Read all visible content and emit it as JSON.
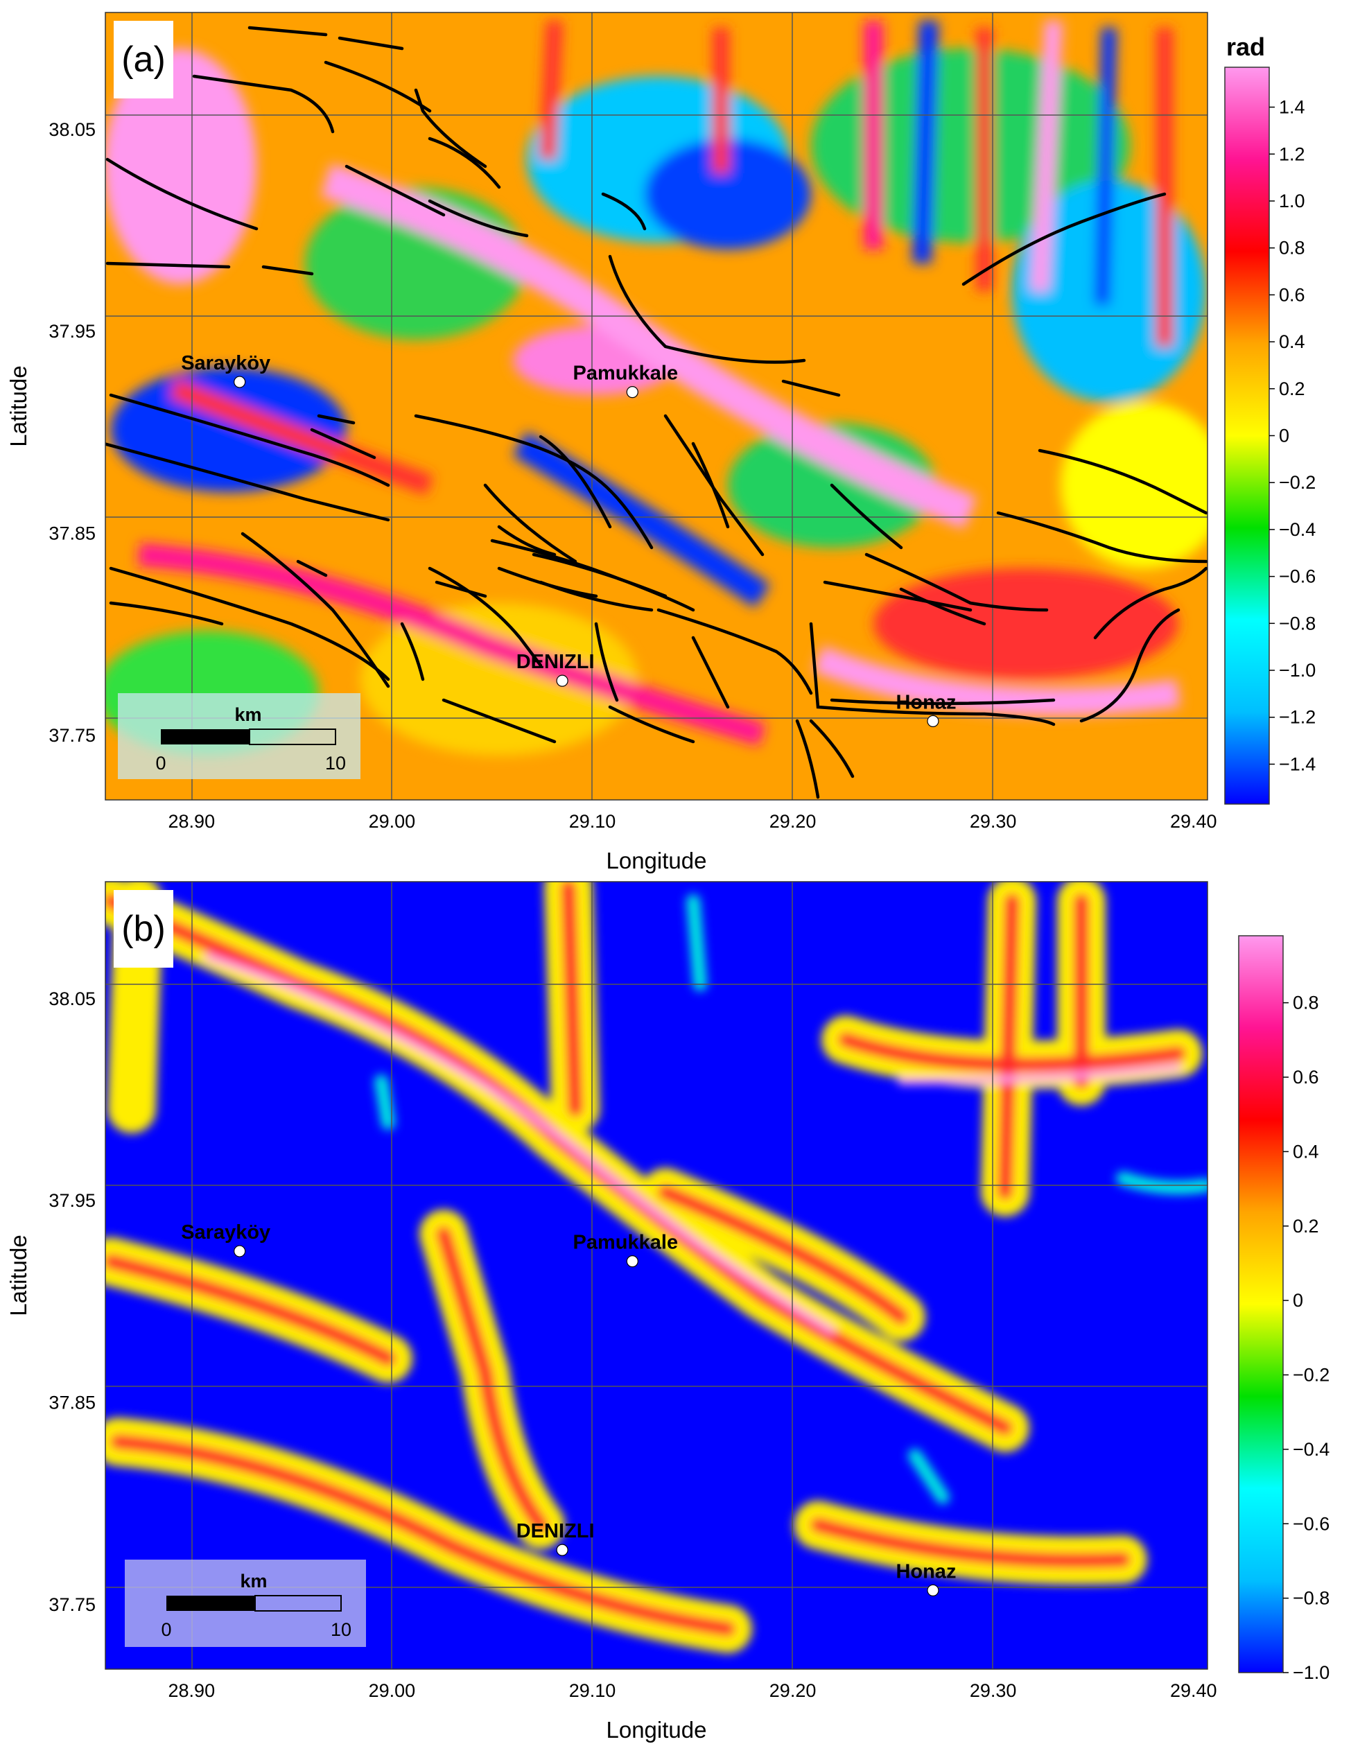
{
  "colors": {
    "grid": "#555555",
    "fault": "#000000",
    "town_marker": "#ffffff",
    "scalebar": "#000000"
  },
  "colormap": [
    "#0000ff",
    "#00bfff",
    "#00ffff",
    "#00e000",
    "#ffff00",
    "#ffa500",
    "#ff0000",
    "#ff1493",
    "#ff99ee"
  ],
  "panels": [
    {
      "label": "(a)",
      "xlabel": "Longitude",
      "ylabel": "Latitude",
      "x_ticks": [
        "28.90",
        "29.00",
        "29.10",
        "29.20",
        "29.30",
        "29.40"
      ],
      "y_ticks": [
        "38.05",
        "37.95",
        "37.85",
        "37.75"
      ],
      "towns": [
        {
          "name": "Sarayköy",
          "lon": 28.924,
          "lat": 37.925
        },
        {
          "name": "Pamukkale",
          "lon": 29.12,
          "lat": 37.92
        },
        {
          "name": "DENIZLI",
          "lon": 29.085,
          "lat": 37.777
        },
        {
          "name": "Honaz",
          "lon": 29.27,
          "lat": 37.757
        }
      ],
      "scalebar": {
        "unit": "km",
        "start": "0",
        "end": "10"
      },
      "colorbar": {
        "unit": "rad",
        "ticks": [
          "1.4",
          "1.2",
          "1.0",
          "0.8",
          "0.6",
          "0.4",
          "0.2",
          "0",
          "−0.2",
          "−0.4",
          "−0.6",
          "−0.8",
          "−1.0",
          "−1.2",
          "−1.4"
        ],
        "range": [
          -1.57,
          1.57
        ]
      }
    },
    {
      "label": "(b)",
      "xlabel": "Longitude",
      "ylabel": "Latitude",
      "x_ticks": [
        "28.90",
        "29.00",
        "29.10",
        "29.20",
        "29.30",
        "29.40"
      ],
      "y_ticks": [
        "38.05",
        "37.95",
        "37.85",
        "37.75"
      ],
      "towns": [
        {
          "name": "Sarayköy",
          "lon": 28.924,
          "lat": 37.925
        },
        {
          "name": "Pamukkale",
          "lon": 29.12,
          "lat": 37.92
        },
        {
          "name": "DENIZLI",
          "lon": 29.085,
          "lat": 37.777
        },
        {
          "name": "Honaz",
          "lon": 29.27,
          "lat": 37.757
        }
      ],
      "scalebar": {
        "unit": "km",
        "start": "0",
        "end": "10"
      },
      "colorbar": {
        "unit": "",
        "ticks": [
          "0.8",
          "0.6",
          "0.4",
          "0.2",
          "0",
          "−0.2",
          "−0.4",
          "−0.6",
          "−0.8",
          "−1.0"
        ],
        "range": [
          -1.0,
          0.98
        ]
      }
    }
  ]
}
